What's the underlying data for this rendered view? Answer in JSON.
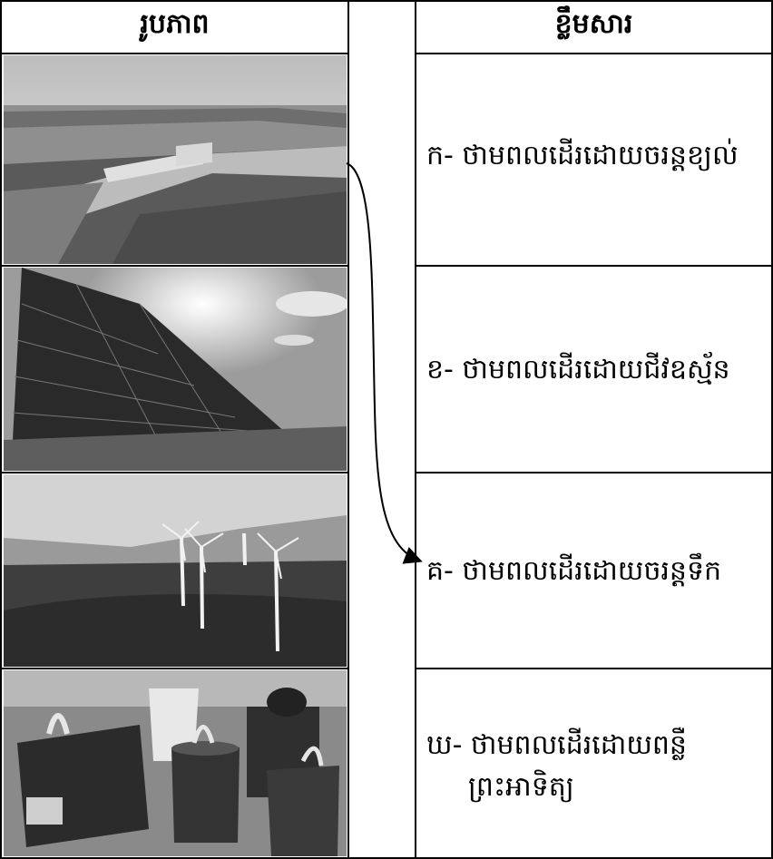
{
  "table": {
    "headers": {
      "images": "រូបភាព",
      "documents": "ខ្លឹមសារ"
    },
    "rows": [
      {
        "text": "ក- ថាមពលដើរដោយចរន្តខ្យល់",
        "image": "hydro-dam-photo"
      },
      {
        "text": "ខ- ថាមពលដើរដោយជីវឧស្ម័ន",
        "image": "solar-panel-photo"
      },
      {
        "text": "គ- ថាមពលដើរដោយចរន្តទឹក",
        "image": "wind-turbines-photo"
      },
      {
        "text_line1": "ឃ- ថាមពលដើរដោយពន្លឺ",
        "text_line2": "ព្រះអាទិត្យ",
        "image": "cookstoves-photo"
      }
    ]
  },
  "connector": {
    "from_row": 1,
    "to_row": 3,
    "icon": "arrow-icon"
  }
}
